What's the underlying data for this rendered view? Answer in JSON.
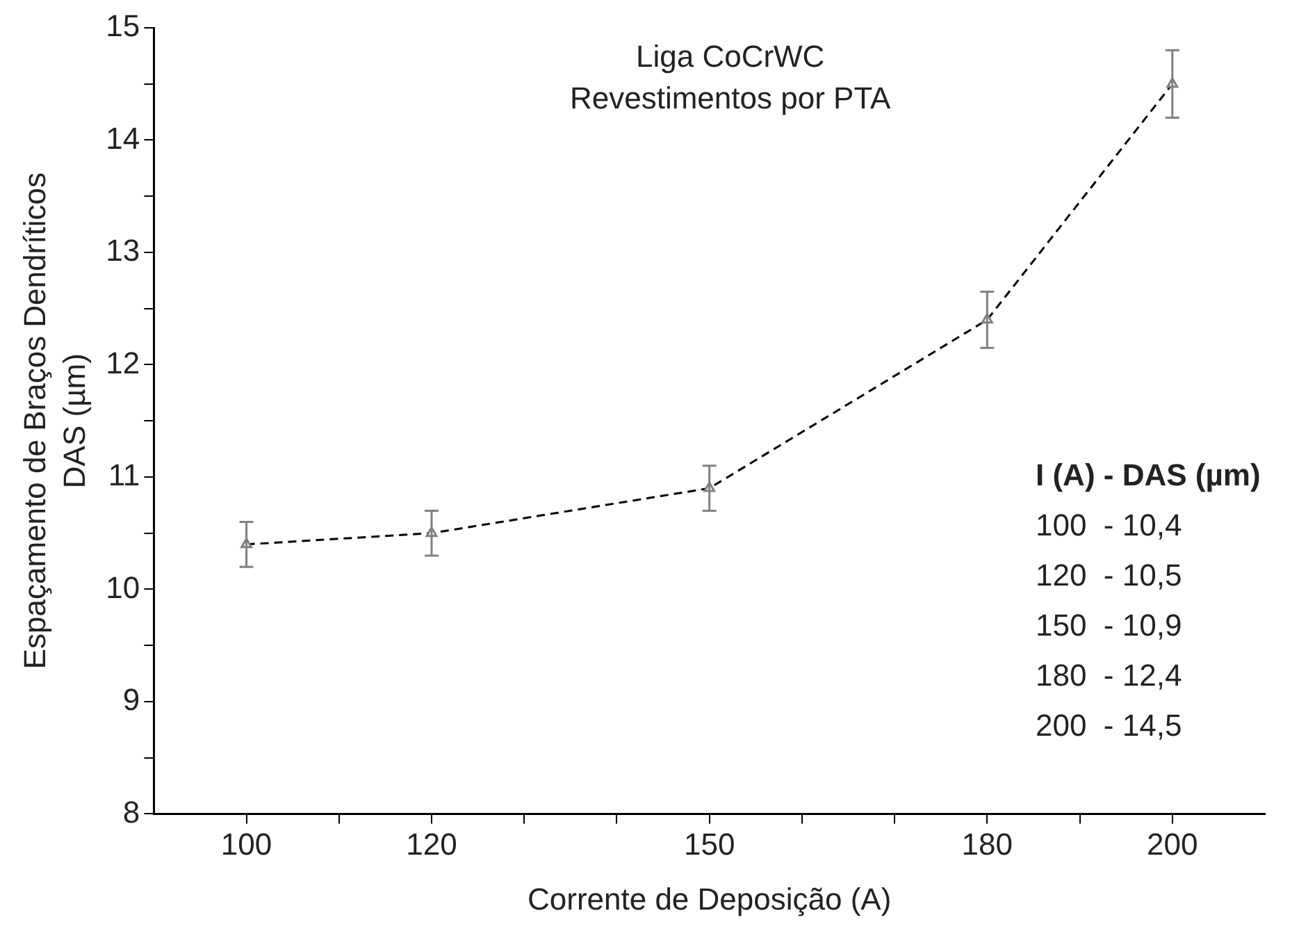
{
  "chart_data": {
    "type": "line",
    "title": "Liga CoCrWC",
    "subtitle": "Revestimentos por PTA",
    "xlabel": "Corrente de Deposição (A)",
    "ylabel": "Espaçamento de Braços Dendríticos\nDAS (µm)",
    "x": [
      100,
      120,
      150,
      180,
      200
    ],
    "series": [
      {
        "color": "#808080",
        "values": [
          10.4,
          10.5,
          10.9,
          12.4,
          14.5
        ],
        "errors": [
          0.2,
          0.2,
          0.2,
          0.25,
          0.3
        ]
      }
    ],
    "xlim": [
      90,
      210
    ],
    "xticks": [
      100,
      {
        "value": 110,
        "label": null
      },
      120,
      {
        "value": 130,
        "label": null
      },
      {
        "value": 140,
        "label": null
      },
      150,
      {
        "value": 160,
        "label": null
      },
      {
        "value": 170,
        "label": null
      },
      180,
      {
        "value": 190,
        "label": null
      },
      200
    ],
    "ylim": [
      8,
      15
    ],
    "yticks": [
      8,
      {
        "value": 8.5,
        "label": null
      },
      9,
      {
        "value": 9.5,
        "label": null
      },
      10,
      {
        "value": 10.5,
        "label": null
      },
      11,
      {
        "value": 11.5,
        "label": null
      },
      12,
      {
        "value": 12.5,
        "label": null
      },
      13,
      {
        "value": 13.5,
        "label": null
      },
      14,
      {
        "value": 14.5,
        "label": null
      },
      15
    ],
    "annotations": [
      "I (A) - DAS (µm)",
      "100  - 10,4",
      "120  - 10,5",
      "150  - 10,9",
      "180  - 12,4",
      "200  - 14,5"
    ],
    "marker": "triangle",
    "line_style": "dashed",
    "grid": false,
    "legend": false
  }
}
